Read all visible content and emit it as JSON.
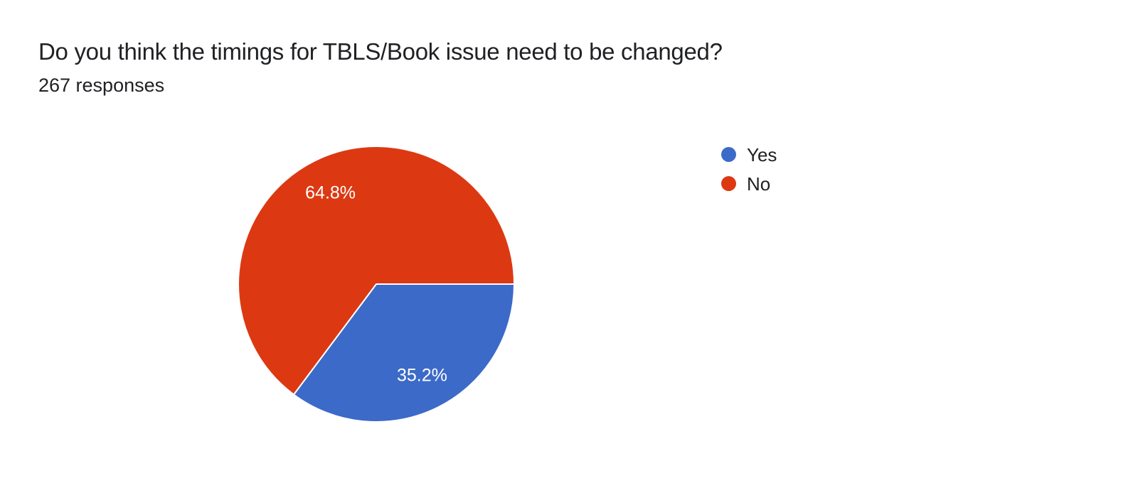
{
  "header": {
    "title": "Do you think the timings for TBLS/Book issue need to be changed?",
    "responses_label": "267 responses",
    "responses_count": 267
  },
  "chart_data": {
    "type": "pie",
    "title": "Do you think the timings for TBLS/Book issue need to be changed?",
    "responses_total": 267,
    "labels": [
      "Yes",
      "No"
    ],
    "values_percent": [
      35.2,
      64.8
    ],
    "slice_labels": [
      "35.2%",
      "64.8%"
    ],
    "colors": [
      "#3C6AC8",
      "#DC3912"
    ],
    "slice_label_color": "#ffffff",
    "slice_separator_color": "#ffffff",
    "start_angle_deg": 0,
    "direction": "clockwise",
    "legend_position": "right",
    "legend_text_color": "#212121"
  }
}
